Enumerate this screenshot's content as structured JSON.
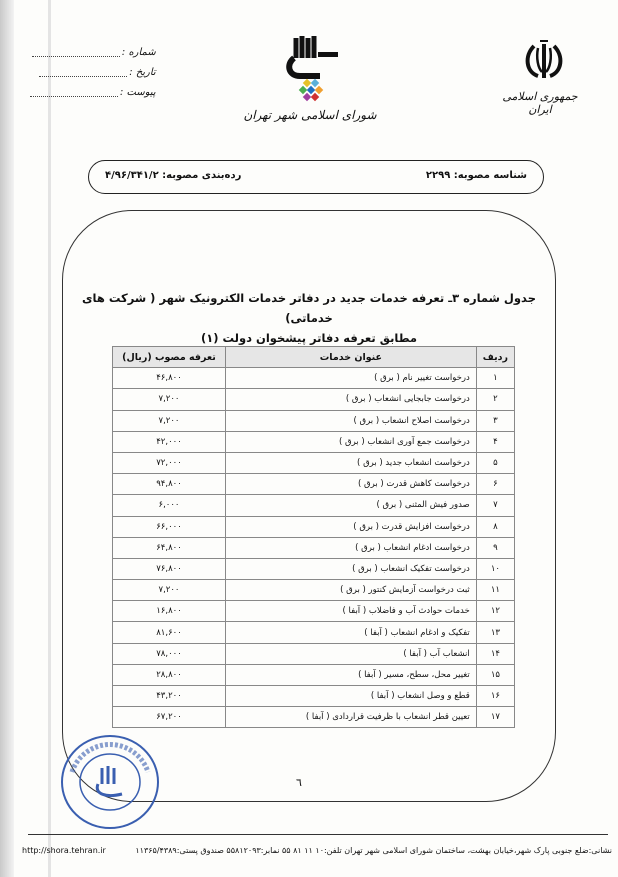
{
  "header": {
    "meta": [
      {
        "label": "شماره :"
      },
      {
        "label": "تاریخ :"
      },
      {
        "label": "پیوست :"
      }
    ],
    "emblem_text": "جمهوری اسلامی ایران",
    "logo_text": "شورای اسلامی شهر تهران",
    "resolution_id": "شناسه مصوبه: ۲۲۹۹",
    "classification": "رده‌بندی مصوبه: ۴/۹۶/۳۴۱/۲"
  },
  "title": {
    "line1": "جدول شماره ۳ـ تعرفه خدمات جدید در دفاتر خدمات الکترونیک شهر ( شرکت های خدماتی)",
    "line2": "مطابق تعرفه دفاتر پیشخوان دولت (۱)"
  },
  "table": {
    "headers": [
      "ردیف",
      "عنوان خدمات",
      "تعرفه مصوب (ریال)"
    ],
    "rows": [
      [
        "۱",
        "درخواست تغییر نام ( برق )",
        "۴۶,۸۰۰"
      ],
      [
        "۲",
        "درخواست جابجایی انشعاب ( برق )",
        "۷,۲۰۰"
      ],
      [
        "۳",
        "درخواست اصلاح انشعاب ( برق )",
        "۷,۲۰۰"
      ],
      [
        "۴",
        "درخواست جمع آوری انشعاب ( برق )",
        "۴۲,۰۰۰"
      ],
      [
        "۵",
        "درخواست انشعاب جدید ( برق )",
        "۷۲,۰۰۰"
      ],
      [
        "۶",
        "درخواست کاهش قدرت ( برق )",
        "۹۴,۸۰۰"
      ],
      [
        "۷",
        "صدور فیش المثنی ( برق )",
        "۶,۰۰۰"
      ],
      [
        "۸",
        "درخواست افزایش قدرت ( برق )",
        "۶۶,۰۰۰"
      ],
      [
        "۹",
        "درخواست ادغام انشعاب ( برق )",
        "۶۴,۸۰۰"
      ],
      [
        "۱۰",
        "درخواست تفکیک انشعاب ( برق )",
        "۷۶,۸۰۰"
      ],
      [
        "۱۱",
        "ثبت درخواست آزمایش کنتور ( برق )",
        "۷,۲۰۰"
      ],
      [
        "۱۲",
        "خدمات حوادث آب و فاضلاب ( آبفا )",
        "۱۶,۸۰۰"
      ],
      [
        "۱۳",
        "تفکیک و ادغام انشعاب ( آبفا )",
        "۸۱,۶۰۰"
      ],
      [
        "۱۴",
        "انشعاب آب ( آبفا )",
        "۷۸,۰۰۰"
      ],
      [
        "۱۵",
        "تغییر محل، سطح، مسیر ( آبفا )",
        "۲۸,۸۰۰"
      ],
      [
        "۱۶",
        "قطع و وصل انشعاب ( آبفا )",
        "۴۳,۲۰۰"
      ],
      [
        "۱۷",
        "تعیین قطر انشعاب با ظرفیت قراردادی ( آبفا )",
        "۶۷,۲۰۰"
      ]
    ]
  },
  "page_number": "٦",
  "footer": {
    "address": "نشانی:ضلع جنوبی پارک شهر،خیابان بهشت، ساختمان شورای اسلامی شهر تهران  تلفن:۱۰ ۱۱ ۸۱ ۵۵ نمابر:۵۵۸۱۲۰۹۳ صندوق پستی:۱۱۳۶۵/۴۳۸۹",
    "url": "http://shora.tehran.ir"
  },
  "stamp_text": "شورای اسلامی شهر تهران",
  "colors": {
    "stamp": "#3a5fb0",
    "header_bg": "#e6e6e6"
  }
}
